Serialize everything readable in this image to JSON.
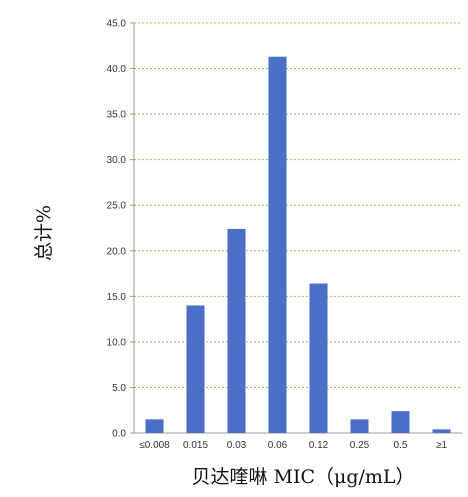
{
  "chart_data": {
    "type": "bar",
    "title": "",
    "xlabel": "贝达喹啉 MIC（μg/mL）",
    "ylabel": "总计%",
    "categories": [
      "≤0.008",
      "0.015",
      "0.03",
      "0.06",
      "0.12",
      "0.25",
      "0.5",
      "≥1"
    ],
    "values": [
      1.5,
      14.0,
      22.4,
      41.3,
      16.4,
      1.5,
      2.4,
      0.4
    ],
    "ylim": [
      0,
      45
    ],
    "yticks": [
      "0.0",
      "5.0",
      "10.0",
      "15.0",
      "20.0",
      "25.0",
      "30.0",
      "35.0",
      "40.0",
      "45.0"
    ],
    "grid": true,
    "legend": "none",
    "colors": {
      "bar": "#4a6fc4",
      "grid": "#8fc24a",
      "axis": "#999999"
    }
  }
}
